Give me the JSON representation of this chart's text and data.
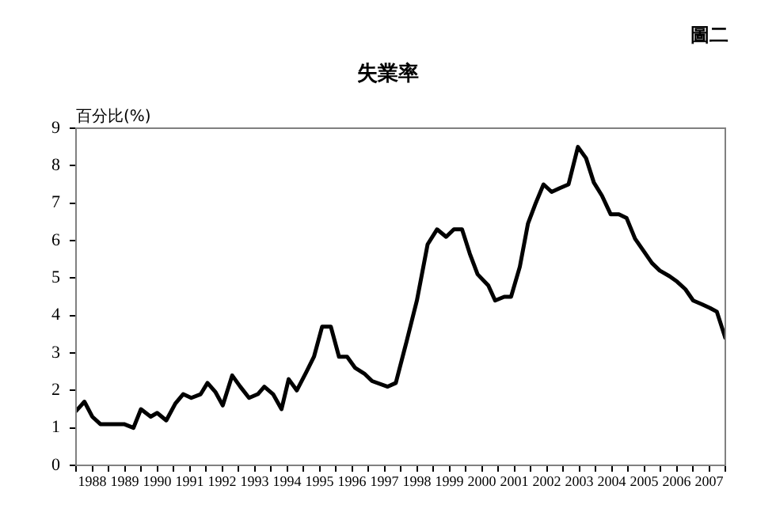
{
  "chart_data": {
    "type": "line",
    "title": "失業率",
    "ylabel": "百分比(%)",
    "annotations": [
      "圖二"
    ],
    "series": [
      {
        "color": "#000000",
        "x": [
          1988.0,
          1988.26,
          1988.5,
          1988.75,
          1989.48,
          1989.77,
          1990.0,
          1990.3,
          1990.5,
          1990.78,
          1991.06,
          1991.3,
          1991.55,
          1991.84,
          1992.05,
          1992.3,
          1992.52,
          1992.81,
          1993.06,
          1993.33,
          1993.6,
          1993.8,
          1994.07,
          1994.33,
          1994.55,
          1994.8,
          1995.1,
          1995.33,
          1995.58,
          1995.85,
          1996.1,
          1996.35,
          1996.6,
          1996.88,
          1997.12,
          1997.6,
          1997.85,
          1998.18,
          1998.5,
          1998.83,
          1999.12,
          1999.4,
          1999.64,
          1999.89,
          2000.13,
          2000.37,
          2000.7,
          2000.91,
          2001.19,
          2001.4,
          2001.67,
          2001.92,
          2002.16,
          2002.4,
          2002.65,
          2002.9,
          2003.17,
          2003.46,
          2003.71,
          2003.95,
          2004.2,
          2004.47,
          2004.72,
          2004.96,
          2005.22,
          2005.5,
          2005.74,
          2005.98,
          2006.28,
          2006.52,
          2006.77,
          2007.01,
          2007.28,
          2007.53,
          2007.74,
          2008.0
        ],
        "values": [
          1.45,
          1.7,
          1.3,
          1.1,
          1.1,
          1.0,
          1.5,
          1.3,
          1.4,
          1.2,
          1.65,
          1.9,
          1.8,
          1.9,
          2.2,
          1.95,
          1.6,
          2.4,
          2.1,
          1.8,
          1.9,
          2.1,
          1.9,
          1.5,
          2.3,
          2.0,
          2.5,
          2.9,
          3.7,
          3.7,
          2.9,
          2.9,
          2.6,
          2.45,
          2.25,
          2.1,
          2.2,
          3.3,
          4.4,
          5.9,
          6.3,
          6.1,
          6.3,
          6.3,
          5.65,
          5.1,
          4.8,
          4.4,
          4.5,
          4.5,
          5.3,
          6.45,
          7.0,
          7.5,
          7.3,
          7.4,
          7.5,
          8.5,
          8.2,
          7.55,
          7.2,
          6.7,
          6.7,
          6.6,
          6.05,
          5.7,
          5.4,
          5.2,
          5.05,
          4.9,
          4.7,
          4.4,
          4.3,
          4.2,
          4.1,
          3.4
        ]
      }
    ],
    "xlim": [
      1988,
      2008
    ],
    "xticks": [
      {
        "value": 1988,
        "label": null
      },
      {
        "value": 1988.5,
        "label": "1988"
      },
      {
        "value": 1989,
        "label": null
      },
      {
        "value": 1989.5,
        "label": "1989"
      },
      {
        "value": 1990,
        "label": null
      },
      {
        "value": 1990.5,
        "label": "1990"
      },
      {
        "value": 1991,
        "label": null
      },
      {
        "value": 1991.5,
        "label": "1991"
      },
      {
        "value": 1992,
        "label": null
      },
      {
        "value": 1992.5,
        "label": "1992"
      },
      {
        "value": 1993,
        "label": null
      },
      {
        "value": 1993.5,
        "label": "1993"
      },
      {
        "value": 1994,
        "label": null
      },
      {
        "value": 1994.5,
        "label": "1994"
      },
      {
        "value": 1995,
        "label": null
      },
      {
        "value": 1995.5,
        "label": "1995"
      },
      {
        "value": 1996,
        "label": null
      },
      {
        "value": 1996.5,
        "label": "1996"
      },
      {
        "value": 1997,
        "label": null
      },
      {
        "value": 1997.5,
        "label": "1997"
      },
      {
        "value": 1998,
        "label": null
      },
      {
        "value": 1998.5,
        "label": "1998"
      },
      {
        "value": 1999,
        "label": null
      },
      {
        "value": 1999.5,
        "label": "1999"
      },
      {
        "value": 2000,
        "label": null
      },
      {
        "value": 2000.5,
        "label": "2000"
      },
      {
        "value": 2001,
        "label": null
      },
      {
        "value": 2001.5,
        "label": "2001"
      },
      {
        "value": 2002,
        "label": null
      },
      {
        "value": 2002.5,
        "label": "2002"
      },
      {
        "value": 2003,
        "label": null
      },
      {
        "value": 2003.5,
        "label": "2003"
      },
      {
        "value": 2004,
        "label": null
      },
      {
        "value": 2004.5,
        "label": "2004"
      },
      {
        "value": 2005,
        "label": null
      },
      {
        "value": 2005.5,
        "label": "2005"
      },
      {
        "value": 2006,
        "label": null
      },
      {
        "value": 2006.5,
        "label": "2006"
      },
      {
        "value": 2007,
        "label": null
      },
      {
        "value": 2007.5,
        "label": "2007"
      },
      {
        "value": 2008,
        "label": null
      }
    ],
    "ylim": [
      0,
      9
    ],
    "yticks": [
      0,
      1,
      2,
      3,
      4,
      5,
      6,
      7,
      8,
      9
    ],
    "grid": false,
    "legend": false,
    "marker": "none",
    "line_style": "solid"
  }
}
